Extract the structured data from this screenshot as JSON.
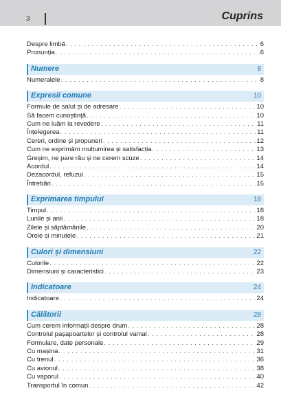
{
  "header": {
    "page_number": "3",
    "title": "Cuprins"
  },
  "intro": [
    {
      "title": "Despre limbă",
      "page": "6"
    },
    {
      "title": "Pronunția",
      "page": "6"
    }
  ],
  "sections": [
    {
      "title": "Numere",
      "page": "8",
      "entries": [
        {
          "title": "Numeralele",
          "page": "8"
        }
      ]
    },
    {
      "title": "Expresii comune",
      "page": "10",
      "entries": [
        {
          "title": "Formule de salut și de adresare",
          "page": "10"
        },
        {
          "title": "Să facem cunoștință",
          "page": "10"
        },
        {
          "title": "Cum ne luăm la revedere",
          "page": "11"
        },
        {
          "title": "Înțelegerea",
          "page": "11"
        },
        {
          "title": "Cereri, ordine și propuneri",
          "page": "12"
        },
        {
          "title": "Cum ne exprimăm mulțumirea și satisfacția",
          "page": "13"
        },
        {
          "title": "Greșim, ne pare rău și ne cerem scuze",
          "page": "14"
        },
        {
          "title": "Acordul",
          "page": "14"
        },
        {
          "title": "Dezacordul, refuzul",
          "page": "15"
        },
        {
          "title": "Întrebări",
          "page": "15"
        }
      ]
    },
    {
      "title": "Exprimarea timpului",
      "page": "18",
      "entries": [
        {
          "title": "Timpul",
          "page": "18"
        },
        {
          "title": "Lunile și anii",
          "page": "18"
        },
        {
          "title": "Zilele și săptămânile",
          "page": "20"
        },
        {
          "title": "Orele și minutele",
          "page": "21"
        }
      ]
    },
    {
      "title": "Culori și dimensiuni",
      "page": "22",
      "entries": [
        {
          "title": "Culorile",
          "page": "22"
        },
        {
          "title": "Dimensiuni și caracteristici",
          "page": "23"
        }
      ]
    },
    {
      "title": "Indicatoare",
      "page": "24",
      "entries": [
        {
          "title": "Indicatoare",
          "page": "24"
        }
      ]
    },
    {
      "title": "Călătorii",
      "page": "28",
      "entries": [
        {
          "title": "Cum cerem informații despre drum",
          "page": "28"
        },
        {
          "title": "Controlul pașapoartelor și controlul vamal",
          "page": "28"
        },
        {
          "title": "Formulare, date personale",
          "page": "29"
        },
        {
          "title": "Cu mașina",
          "page": "31"
        },
        {
          "title": "Cu trenul",
          "page": "36"
        },
        {
          "title": "Cu avionul",
          "page": "38"
        },
        {
          "title": "Cu vaporul",
          "page": "40"
        },
        {
          "title": "Transportul în comun",
          "page": "42"
        }
      ]
    }
  ],
  "colors": {
    "accent": "#1f7bb4",
    "section_bg": "#dcecf6",
    "header_bg": "#d4d4d6"
  }
}
